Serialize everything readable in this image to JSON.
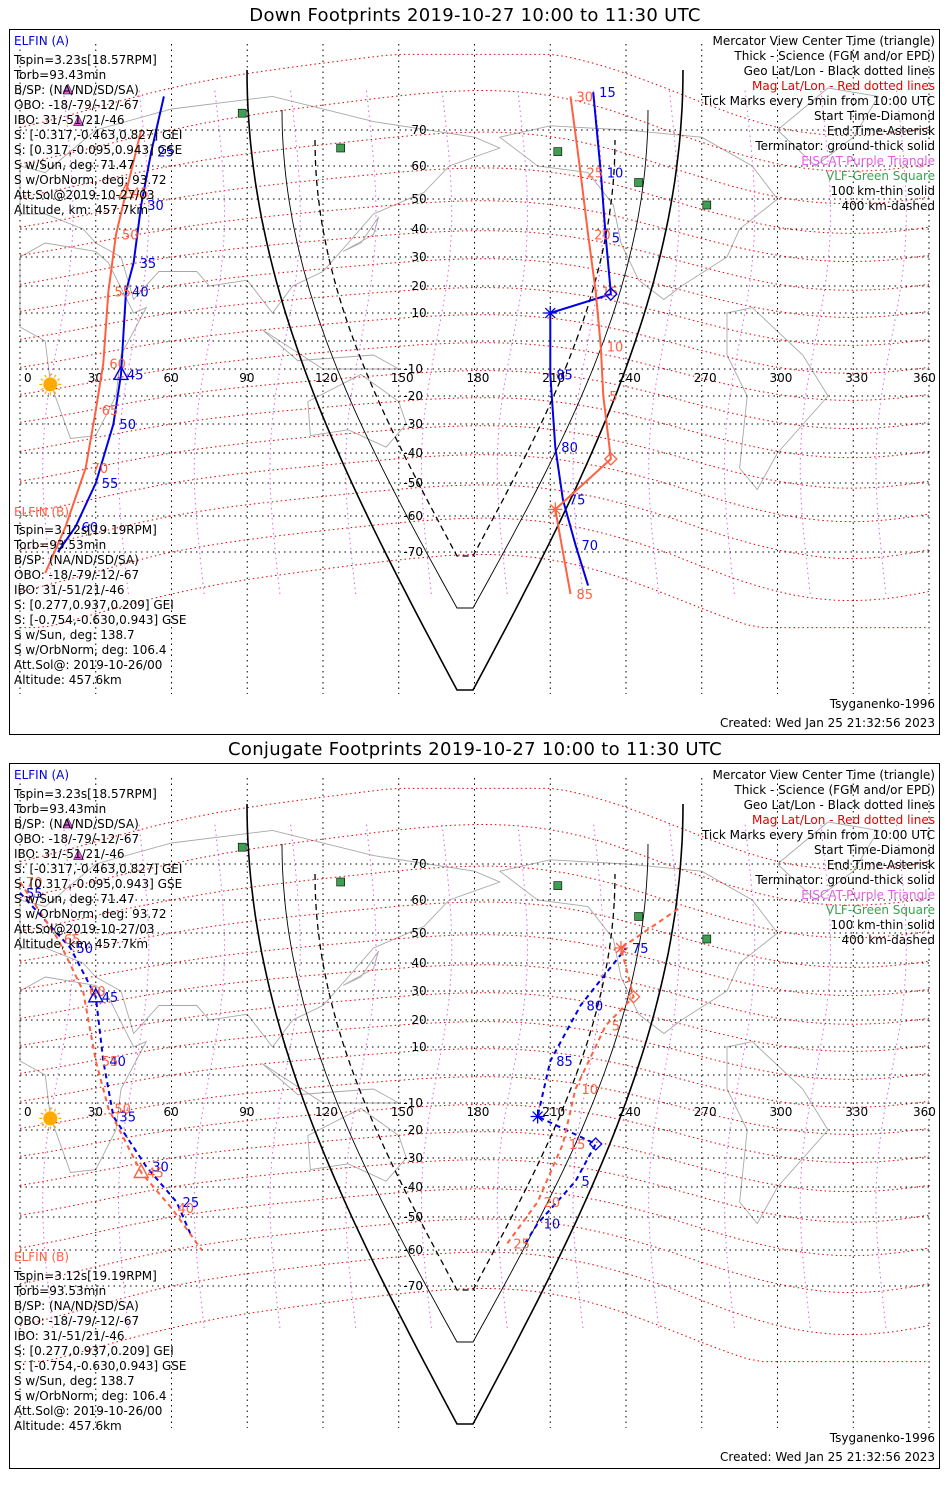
{
  "panels": [
    {
      "title": "Down Footprints 2019-10-27 10:00 to 11:30 UTC",
      "sat_a": {
        "name": "ELFIN (A)",
        "info": [
          "Tspin=3.23s[18.57RPM]",
          "Torb=93.43min",
          "B/SP: (NA/ND/SD/SA)",
          "OBO: -18/-79/-12/-67",
          "IBO: 31/-51/21/-46",
          "S: [-0.317,-0.463,0.827] GEI",
          "S: [0.317,-0.095,0.943] GSE",
          "S w/Sun, deg: 71.47",
          "S w/OrbNorm, deg: 93.72",
          "Att.Sol@2019-10-27/03",
          "Altitude, km: 457.7km"
        ]
      },
      "sat_b": {
        "name": "ELFIN (B)",
        "info": [
          "Tspin=3.12s[19.19RPM]",
          "Torb=93.53min",
          "B/SP: (NA/ND/SD/SA)",
          "OBO: -18/-79/-12/-67",
          "IBO: 31/-51/21/-46",
          "S: [0.277,0.937,0.209] GEI",
          "S: [-0.754,-0.630,0.943] GSE",
          "S w/Sun, deg: 138.7",
          "S w/OrbNorm, deg: 106.4",
          "Att.Sol@: 2019-10-26/00",
          "Altitude: 457.6km"
        ]
      },
      "legend": [
        "Mercator View Center Time (triangle)",
        "Thick - Science (FGM and/or EPD)",
        "Geo Lat/Lon - Black dotted lines",
        "Mag Lat/Lon - Red dotted lines",
        "Tick Marks every 5min from 10:00 UTC",
        "Start Time-Diamond",
        "End Time-Asterisk",
        "Terminator: ground-thick solid",
        "EISCAT-Purple Triangle",
        "VLF-Green Square",
        "100 km-thin solid",
        "400 km-dashed"
      ],
      "model": "Tsyganenko-1996",
      "created": "Created: Wed Jan 25 21:32:56 2023",
      "track_a": [
        {
          "lon": 15,
          "lat": -70,
          "label": ""
        },
        {
          "lon": 22,
          "lat": -63,
          "label": "60"
        },
        {
          "lon": 30,
          "lat": -50,
          "label": "55"
        },
        {
          "lon": 37,
          "lat": -30,
          "label": "50"
        },
        {
          "lon": 40,
          "lat": -12,
          "label": "45"
        },
        {
          "lon": 42,
          "lat": 18,
          "label": "40"
        },
        {
          "lon": 45,
          "lat": 28,
          "label": "35"
        },
        {
          "lon": 48,
          "lat": 48,
          "label": "30"
        },
        {
          "lon": 52,
          "lat": 64,
          "label": "25"
        },
        {
          "lon": 57,
          "lat": 78,
          "label": ""
        },
        {
          "lon": 227,
          "lat": 79,
          "label": "15"
        },
        {
          "lon": 230,
          "lat": 58,
          "label": "10"
        },
        {
          "lon": 232,
          "lat": 37,
          "label": "5"
        },
        {
          "lon": 234,
          "lat": 17,
          "label": ""
        },
        {
          "lon": 210,
          "lat": 10,
          "label": ""
        },
        {
          "lon": 210,
          "lat": -12,
          "label": "85"
        },
        {
          "lon": 212,
          "lat": -38,
          "label": "80"
        },
        {
          "lon": 215,
          "lat": -55,
          "label": "75"
        },
        {
          "lon": 220,
          "lat": -68,
          "label": "70"
        },
        {
          "lon": 225,
          "lat": -78,
          "label": ""
        }
      ],
      "track_b": [
        {
          "lon": 10,
          "lat": -75,
          "label": ""
        },
        {
          "lon": 18,
          "lat": -63,
          "label": ""
        },
        {
          "lon": 26,
          "lat": -45,
          "label": "70"
        },
        {
          "lon": 30,
          "lat": -25,
          "label": "65"
        },
        {
          "lon": 33,
          "lat": -8,
          "label": "60"
        },
        {
          "lon": 35,
          "lat": 18,
          "label": "55"
        },
        {
          "lon": 38,
          "lat": 38,
          "label": "50"
        },
        {
          "lon": 42,
          "lat": 52,
          "label": "45"
        },
        {
          "lon": 48,
          "lat": 70,
          "label": ""
        },
        {
          "lon": 218,
          "lat": 78,
          "label": "30"
        },
        {
          "lon": 222,
          "lat": 58,
          "label": "25"
        },
        {
          "lon": 225,
          "lat": 38,
          "label": "20"
        },
        {
          "lon": 228,
          "lat": 18,
          "label": "15"
        },
        {
          "lon": 230,
          "lat": -2,
          "label": "10"
        },
        {
          "lon": 231,
          "lat": -20,
          "label": "5"
        },
        {
          "lon": 234,
          "lat": -42,
          "label": ""
        },
        {
          "lon": 212,
          "lat": -58,
          "label": ""
        },
        {
          "lon": 215,
          "lat": -70,
          "label": ""
        },
        {
          "lon": 218,
          "lat": -80,
          "label": "85"
        }
      ]
    },
    {
      "title": "Conjugate Footprints 2019-10-27 10:00 to 11:30 UTC",
      "sat_a": {
        "name": "ELFIN (A)",
        "info": [
          "Tspin=3.23s[18.57RPM]",
          "Torb=93.43min",
          "B/SP: (NA/ND/SD/SA)",
          "OBO: -18/-79/-12/-67",
          "IBO: 31/-51/21/-46",
          "S: [-0.317,-0.463,0.827] GEI",
          "S: [0.317,-0.095,0.943] GSE",
          "S w/Sun, deg: 71.47",
          "S w/OrbNorm, deg: 93.72",
          "Att.Sol@2019-10-27/03",
          "Altitude, km: 457.7km"
        ]
      },
      "sat_b": {
        "name": "ELFIN (B)",
        "info": [
          "Tspin=3.12s[19.19RPM]",
          "Torb=93.53min",
          "B/SP: (NA/ND/SD/SA)",
          "OBO: -18/-79/-12/-67",
          "IBO: 31/-51/21/-46",
          "S: [0.277,0.937,0.209] GEI",
          "S: [-0.754,-0.630,0.943] GSE",
          "S w/Sun, deg: 138.7",
          "S w/OrbNorm, deg: 106.4",
          "Att.Sol@: 2019-10-26/00",
          "Altitude: 457.6km"
        ]
      },
      "legend": [
        "Mercator View Center Time (triangle)",
        "Thick - Science (FGM and/or EPD)",
        "Geo Lat/Lon - Black dotted lines",
        "Mag Lat/Lon - Red dotted lines",
        "Tick Marks every 5min from 10:00 UTC",
        "Start Time-Diamond",
        "End Time-Asterisk",
        "Terminator: ground-thick solid",
        "EISCAT-Purple Triangle",
        "VLF-Green Square",
        "100 km-thin solid",
        "400 km-dashed"
      ],
      "model": "Tsyganenko-1996",
      "created": "Created: Wed Jan 25 21:32:56 2023",
      "track_a": [
        {
          "lon": 0,
          "lat": 62,
          "label": "55"
        },
        {
          "lon": 20,
          "lat": 45,
          "label": "50"
        },
        {
          "lon": 30,
          "lat": 28,
          "label": "45"
        },
        {
          "lon": 33,
          "lat": 5,
          "label": "40"
        },
        {
          "lon": 37,
          "lat": -15,
          "label": "35"
        },
        {
          "lon": 50,
          "lat": -33,
          "label": "30"
        },
        {
          "lon": 62,
          "lat": -45,
          "label": "25"
        },
        {
          "lon": 68,
          "lat": -56,
          "label": ""
        },
        {
          "lon": 200,
          "lat": -58,
          "label": ""
        },
        {
          "lon": 205,
          "lat": -52,
          "label": "10"
        },
        {
          "lon": 220,
          "lat": -38,
          "label": "5"
        },
        {
          "lon": 228,
          "lat": -25,
          "label": ""
        },
        {
          "lon": 205,
          "lat": -15,
          "label": ""
        },
        {
          "lon": 210,
          "lat": 5,
          "label": "85"
        },
        {
          "lon": 222,
          "lat": 25,
          "label": "80"
        },
        {
          "lon": 240,
          "lat": 45,
          "label": "75"
        }
      ],
      "track_b": [
        {
          "lon": 0,
          "lat": 65,
          "label": "70"
        },
        {
          "lon": 15,
          "lat": 48,
          "label": "65"
        },
        {
          "lon": 25,
          "lat": 30,
          "label": "60"
        },
        {
          "lon": 30,
          "lat": 5,
          "label": "55"
        },
        {
          "lon": 35,
          "lat": -12,
          "label": "50"
        },
        {
          "lon": 48,
          "lat": -35,
          "label": "45"
        },
        {
          "lon": 60,
          "lat": -47,
          "label": "40"
        },
        {
          "lon": 72,
          "lat": -60,
          "label": ""
        },
        {
          "lon": 193,
          "lat": -58,
          "label": "25"
        },
        {
          "lon": 205,
          "lat": -45,
          "label": "20"
        },
        {
          "lon": 215,
          "lat": -25,
          "label": "15"
        },
        {
          "lon": 220,
          "lat": -5,
          "label": "10"
        },
        {
          "lon": 232,
          "lat": 18,
          "label": "5"
        },
        {
          "lon": 243,
          "lat": 28,
          "label": ""
        },
        {
          "lon": 238,
          "lat": 45,
          "label": ""
        },
        {
          "lon": 262,
          "lat": 58,
          "label": ""
        }
      ]
    }
  ],
  "map_axes": {
    "lon_ticks": [
      "0",
      "30",
      "60",
      "90",
      "120",
      "150",
      "180",
      "210",
      "240",
      "270",
      "300",
      "330",
      "360"
    ],
    "lat_ticks": [
      "70",
      "60",
      "50",
      "40",
      "30",
      "20",
      "10",
      "-10",
      "-20",
      "-30",
      "-40",
      "-50",
      "-60",
      "-70"
    ]
  },
  "colors": {
    "sat_a": "#0000e6",
    "sat_b": "#ff6040",
    "mag_grid": "#e00000",
    "geo_grid": "#000000",
    "eiscat": "#e060e0",
    "vlf": "#3ca050",
    "land": "#a8a8a8",
    "sun": "#ffaa00"
  },
  "sites": {
    "vlf": [
      {
        "lon": 88,
        "lat": 74
      },
      {
        "lon": 127,
        "lat": 65
      },
      {
        "lon": 213,
        "lat": 64
      },
      {
        "lon": 245,
        "lat": 55
      },
      {
        "lon": 272,
        "lat": 48
      }
    ],
    "eiscat": [
      {
        "lon": 19,
        "lat": 70
      },
      {
        "lon": 20,
        "lat": 69
      }
    ]
  }
}
